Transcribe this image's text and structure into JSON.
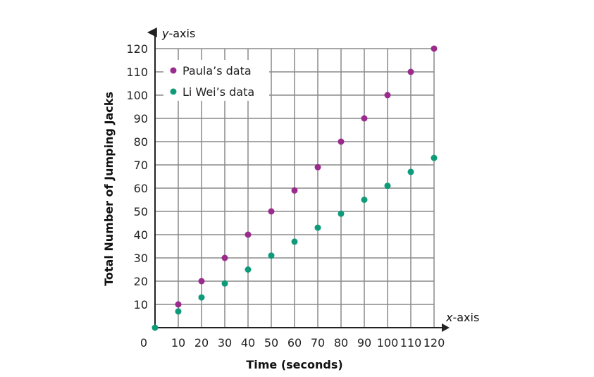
{
  "chart_data": {
    "type": "scatter",
    "xlabel": "Time (seconds)",
    "ylabel": "Total Number of Jumping Jacks",
    "x_axis_name": "x-axis",
    "y_axis_name": "y-axis",
    "xlim": [
      0,
      120
    ],
    "ylim": [
      0,
      120
    ],
    "x_ticks": [
      0,
      10,
      20,
      30,
      40,
      50,
      60,
      70,
      80,
      90,
      100,
      110,
      120
    ],
    "y_ticks": [
      10,
      20,
      30,
      40,
      50,
      60,
      70,
      80,
      90,
      100,
      110,
      120
    ],
    "grid": true,
    "legend_position": "top-left",
    "series": [
      {
        "name": "Paula’s data",
        "color": "#9b2a8d",
        "points": [
          [
            10,
            10
          ],
          [
            20,
            20
          ],
          [
            30,
            30
          ],
          [
            40,
            40
          ],
          [
            50,
            50
          ],
          [
            60,
            59
          ],
          [
            70,
            69
          ],
          [
            80,
            80
          ],
          [
            90,
            90
          ],
          [
            100,
            100
          ],
          [
            110,
            110
          ],
          [
            120,
            120
          ]
        ]
      },
      {
        "name": "Li Wei’s data",
        "color": "#0f9a7a",
        "points": [
          [
            0,
            0
          ],
          [
            10,
            7
          ],
          [
            20,
            13
          ],
          [
            30,
            19
          ],
          [
            40,
            25
          ],
          [
            50,
            31
          ],
          [
            60,
            37
          ],
          [
            70,
            43
          ],
          [
            80,
            49
          ],
          [
            90,
            55
          ],
          [
            100,
            61
          ],
          [
            110,
            67
          ],
          [
            120,
            73
          ]
        ]
      }
    ]
  }
}
